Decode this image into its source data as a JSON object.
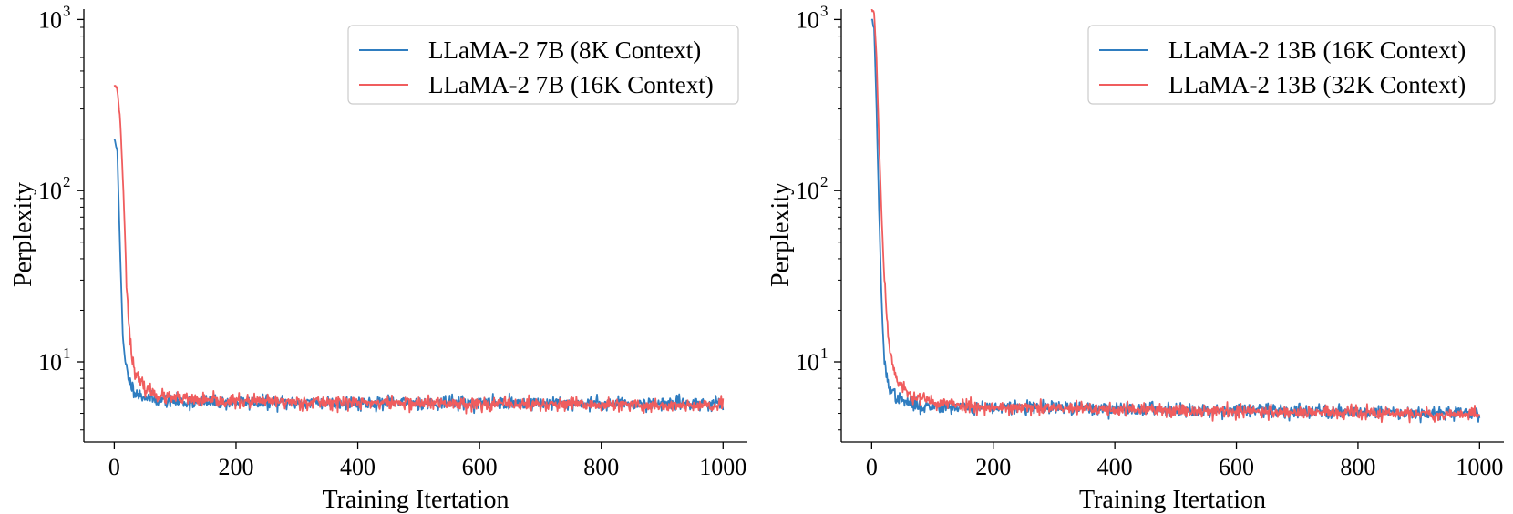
{
  "chart_data": [
    {
      "type": "line",
      "scale_y": "log",
      "xlabel": "Training Itertation",
      "ylabel": "Perplexity",
      "xlim": [
        -50,
        1040
      ],
      "ylim": [
        3.4,
        1150
      ],
      "x_ticks": [
        0,
        200,
        400,
        600,
        800,
        1000
      ],
      "x_tick_labels": [
        "0",
        "200",
        "400",
        "600",
        "800",
        "1000"
      ],
      "y_ticks": [
        10,
        100,
        1000
      ],
      "y_tick_labels": [
        "10",
        "10",
        "10"
      ],
      "y_tick_exponents": [
        "1",
        "2",
        "3"
      ],
      "legend": "top-right",
      "series": [
        {
          "name": "LLaMA-2 7B (8K Context)",
          "color": "#2f7dc0",
          "start": 200,
          "decay": 2.6,
          "floor": 5.7,
          "noise": 0.045,
          "seed": 11,
          "anchors": [
            [
              0,
              200
            ],
            [
              5,
              170
            ],
            [
              10,
              40
            ],
            [
              14,
              14
            ],
            [
              18,
              10
            ],
            [
              22,
              8.5
            ],
            [
              28,
              7.2
            ],
            [
              40,
              6.4
            ],
            [
              70,
              6.0
            ],
            [
              120,
              5.8
            ],
            [
              1000,
              5.7
            ]
          ]
        },
        {
          "name": "LLaMA-2 7B (16K Context)",
          "color": "#f05d5e",
          "start": 420,
          "decay": 3.2,
          "floor": 5.6,
          "noise": 0.045,
          "seed": 23,
          "anchors": [
            [
              0,
              420
            ],
            [
              5,
              390
            ],
            [
              10,
              250
            ],
            [
              15,
              100
            ],
            [
              20,
              30
            ],
            [
              25,
              15
            ],
            [
              30,
              10
            ],
            [
              38,
              8
            ],
            [
              50,
              7
            ],
            [
              80,
              6.2
            ],
            [
              150,
              5.9
            ],
            [
              1000,
              5.5
            ]
          ]
        }
      ]
    },
    {
      "type": "line",
      "scale_y": "log",
      "xlabel": "Training Itertation",
      "ylabel": "Perplexity",
      "xlim": [
        -50,
        1040
      ],
      "ylim": [
        3.4,
        1150
      ],
      "x_ticks": [
        0,
        200,
        400,
        600,
        800,
        1000
      ],
      "x_tick_labels": [
        "0",
        "200",
        "400",
        "600",
        "800",
        "1000"
      ],
      "y_ticks": [
        10,
        100,
        1000
      ],
      "y_tick_labels": [
        "10",
        "10",
        "10"
      ],
      "y_tick_exponents": [
        "1",
        "2",
        "3"
      ],
      "legend": "top-right",
      "series": [
        {
          "name": "LLaMA-2 13B (16K Context)",
          "color": "#2f7dc0",
          "start": 1000,
          "decay": 2.6,
          "floor": 5.2,
          "noise": 0.045,
          "seed": 37,
          "anchors": [
            [
              0,
              1000
            ],
            [
              4,
              900
            ],
            [
              8,
              300
            ],
            [
              12,
              80
            ],
            [
              16,
              25
            ],
            [
              20,
              11
            ],
            [
              25,
              8
            ],
            [
              32,
              6.8
            ],
            [
              45,
              6.0
            ],
            [
              80,
              5.5
            ],
            [
              1000,
              5.0
            ]
          ]
        },
        {
          "name": "LLaMA-2 13B (32K Context)",
          "color": "#f05d5e",
          "start": 1150,
          "decay": 3.1,
          "floor": 5.2,
          "noise": 0.045,
          "seed": 53,
          "anchors": [
            [
              0,
              1150
            ],
            [
              4,
              1100
            ],
            [
              8,
              600
            ],
            [
              12,
              200
            ],
            [
              16,
              80
            ],
            [
              20,
              35
            ],
            [
              25,
              18
            ],
            [
              30,
              12
            ],
            [
              36,
              9
            ],
            [
              45,
              7.5
            ],
            [
              60,
              6.5
            ],
            [
              100,
              5.8
            ],
            [
              200,
              5.4
            ],
            [
              1000,
              4.9
            ]
          ]
        }
      ]
    }
  ]
}
